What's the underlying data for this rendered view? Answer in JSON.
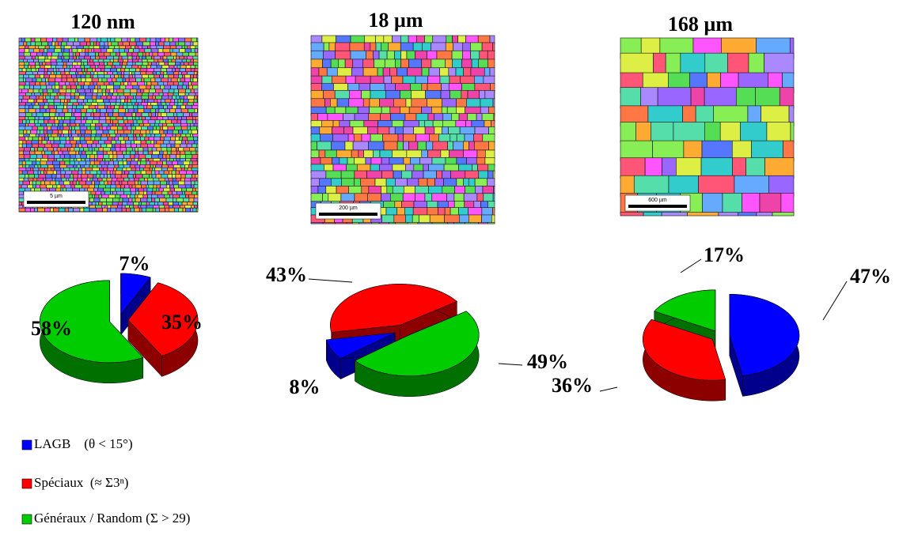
{
  "chart_data": [
    {
      "type": "pie",
      "title": "120 nm",
      "scale_bar": "5 µm",
      "values": [
        7,
        35,
        58
      ],
      "value_labels": [
        "7%",
        "35%",
        "58%"
      ]
    },
    {
      "type": "pie",
      "title": "18 µm",
      "scale_bar": "200 µm",
      "values": [
        8,
        43,
        49
      ],
      "value_labels": [
        "8%",
        "43%",
        "49%"
      ]
    },
    {
      "type": "pie",
      "title": "168 µm",
      "scale_bar": "600 µm",
      "values": [
        47,
        36,
        17
      ],
      "value_labels": [
        "47%",
        "36%",
        "17%"
      ]
    }
  ],
  "legend": {
    "categories": [
      "LAGB    (θ < 15°)",
      "Spéciaux  (≈ Σ3ⁿ)",
      "Généraux / Random (Σ > 29)"
    ],
    "colors": [
      "#0000ff",
      "#ff0000",
      "#00cc00"
    ]
  }
}
